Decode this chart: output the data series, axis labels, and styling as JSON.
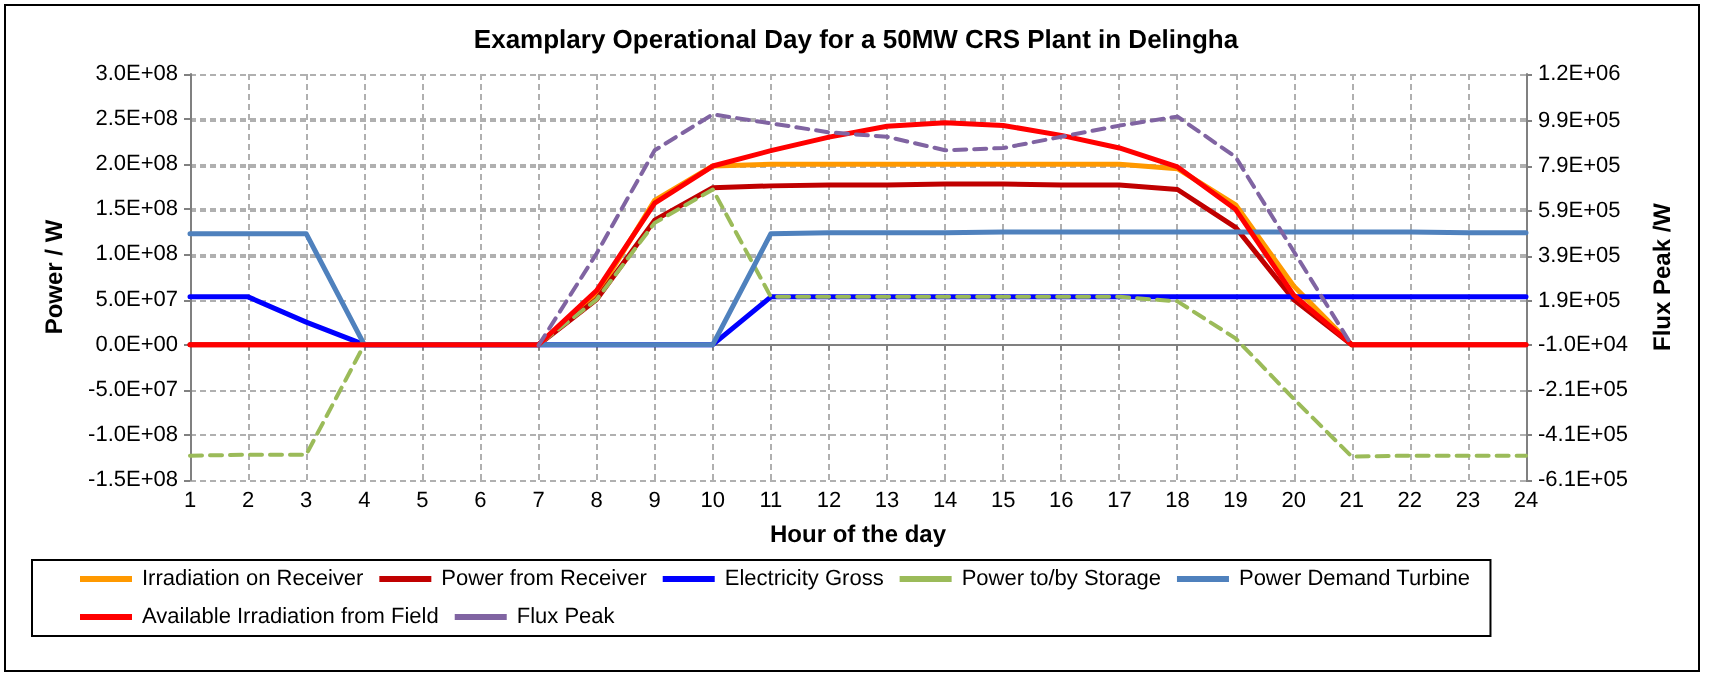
{
  "chart_data": {
    "type": "line",
    "title": "Examplary Operational Day for a 50MW CRS Plant in Delingha",
    "xlabel": "Hour of the day",
    "ylabel": "Power / W",
    "y2label": "Flux Peak /W",
    "x": [
      1,
      2,
      3,
      4,
      5,
      6,
      7,
      8,
      9,
      10,
      11,
      12,
      13,
      14,
      15,
      16,
      17,
      18,
      19,
      20,
      21,
      22,
      23,
      24
    ],
    "xlim": [
      1,
      24
    ],
    "xticks": [
      1,
      2,
      3,
      4,
      5,
      6,
      7,
      8,
      9,
      10,
      11,
      12,
      13,
      14,
      15,
      16,
      17,
      18,
      19,
      20,
      21,
      22,
      23,
      24
    ],
    "ylim": [
      -150000000,
      300000000
    ],
    "yticks": [
      {
        "value": -150000000,
        "label": "-1.5E+08"
      },
      {
        "value": -100000000,
        "label": "-1.0E+08"
      },
      {
        "value": -50000000,
        "label": "-5.0E+07"
      },
      {
        "value": 0,
        "label": "0.0E+00"
      },
      {
        "value": 50000000,
        "label": "5.0E+07"
      },
      {
        "value": 100000000,
        "label": "1.0E+08"
      },
      {
        "value": 150000000,
        "label": "1.5E+08"
      },
      {
        "value": 200000000,
        "label": "2.0E+08"
      },
      {
        "value": 250000000,
        "label": "2.5E+08"
      },
      {
        "value": 300000000,
        "label": "3.0E+08"
      }
    ],
    "y2lim": [
      -610000,
      1200000
    ],
    "y2ticks": [
      {
        "value": -610000,
        "label": "-6.1E+05"
      },
      {
        "value": -410000,
        "label": "-4.1E+05"
      },
      {
        "value": -210000,
        "label": "-2.1E+05"
      },
      {
        "value": -10000,
        "label": "-1.0E+04"
      },
      {
        "value": 190000,
        "label": "1.9E+05"
      },
      {
        "value": 390000,
        "label": "3.9E+05"
      },
      {
        "value": 590000,
        "label": "5.9E+05"
      },
      {
        "value": 790000,
        "label": "7.9E+05"
      },
      {
        "value": 990000,
        "label": "9.9E+05"
      },
      {
        "value": 1200000,
        "label": "1.2E+06"
      }
    ],
    "grid": true,
    "legend": "bottom",
    "marker": "none",
    "series": [
      {
        "name": "Irradiation on Receiver",
        "color": "#ff9900",
        "line_style": "solid",
        "values": [
          null,
          null,
          null,
          null,
          null,
          null,
          0,
          55000000,
          160000000,
          198000000,
          200000000,
          200000000,
          200000000,
          200000000,
          200000000,
          200000000,
          200000000,
          195000000,
          155000000,
          65000000,
          0,
          null,
          null,
          null
        ]
      },
      {
        "name": "Power from Receiver",
        "color": "#c00000",
        "line_style": "solid",
        "values": [
          0,
          0,
          0,
          0,
          0,
          0,
          0,
          50000000,
          138000000,
          174000000,
          176000000,
          177000000,
          177000000,
          178000000,
          178000000,
          177000000,
          177000000,
          172000000,
          130000000,
          50000000,
          0,
          0,
          0,
          0
        ]
      },
      {
        "name": "Electricity Gross",
        "color": "#0000ff",
        "line_style": "solid",
        "values": [
          53000000,
          53000000,
          25000000,
          0,
          0,
          0,
          0,
          0,
          0,
          0,
          53000000,
          53000000,
          53000000,
          53000000,
          53000000,
          53000000,
          53000000,
          53000000,
          53000000,
          53000000,
          53000000,
          53000000,
          53000000,
          53000000
        ]
      },
      {
        "name": "Power to/by Storage",
        "color": "#9bbb59",
        "line_style": "dashed",
        "values": [
          -123000000,
          -122000000,
          -122000000,
          0,
          0,
          0,
          0,
          50000000,
          135000000,
          172000000,
          53000000,
          53000000,
          53000000,
          53000000,
          53000000,
          53000000,
          53000000,
          48000000,
          7000000,
          -60000000,
          -124000000,
          -123000000,
          -123000000,
          -123000000
        ]
      },
      {
        "name": "Power Demand Turbine",
        "color": "#4f81bd",
        "line_style": "solid",
        "values": [
          123000000,
          123000000,
          123000000,
          0,
          0,
          0,
          0,
          0,
          0,
          0,
          123000000,
          124000000,
          124000000,
          124000000,
          125000000,
          125000000,
          125000000,
          125000000,
          125000000,
          125000000,
          125000000,
          125000000,
          124000000,
          124000000
        ]
      },
      {
        "name": "Available Irradiation from Field",
        "color": "#ff0000",
        "line_style": "solid",
        "values": [
          0,
          0,
          0,
          0,
          0,
          0,
          0,
          60000000,
          157000000,
          198000000,
          215000000,
          230000000,
          242000000,
          246000000,
          243000000,
          232000000,
          218000000,
          197000000,
          150000000,
          55000000,
          0,
          0,
          0,
          0
        ]
      },
      {
        "name": "Flux Peak",
        "color": "#8064a2",
        "line_style": "dashed",
        "axis": "y2",
        "values": [
          null,
          null,
          null,
          null,
          null,
          null,
          -10000,
          400000,
          860000,
          1020000,
          980000,
          940000,
          920000,
          860000,
          870000,
          920000,
          970000,
          1010000,
          830000,
          410000,
          -10000,
          null,
          null,
          null
        ]
      }
    ]
  }
}
